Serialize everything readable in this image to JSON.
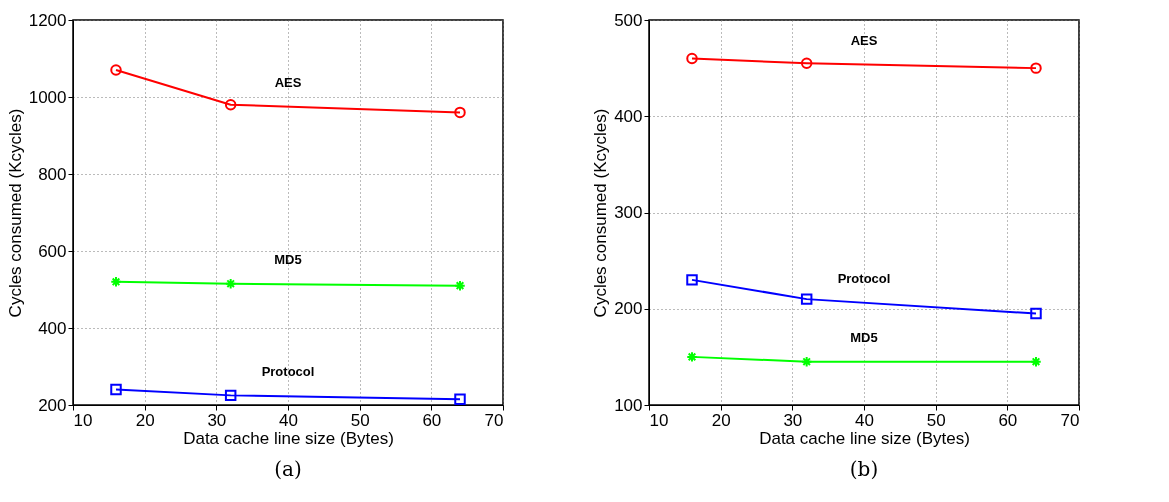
{
  "chart_data": [
    {
      "type": "line",
      "xlabel": "Data cache line size (Bytes)",
      "ylabel": "Cycles consumed (Kcycles)",
      "x": [
        16,
        32,
        64
      ],
      "xlim": [
        10,
        70
      ],
      "xticks": [
        10,
        20,
        30,
        40,
        50,
        60,
        70
      ],
      "ylim": [
        200,
        1200
      ],
      "yticks": [
        200,
        400,
        600,
        800,
        1000,
        1200
      ],
      "grid": true,
      "line_style": "solid",
      "annotations": [
        "(a)"
      ],
      "series": [
        {
          "name": "AES",
          "color": "#ff0000",
          "marker": "circle",
          "values": [
            1070,
            980,
            960
          ]
        },
        {
          "name": "MD5",
          "color": "#00ff00",
          "marker": "cross",
          "values": [
            520,
            515,
            510
          ]
        },
        {
          "name": "Protocol",
          "color": "#0000ff",
          "marker": "square",
          "values": [
            240,
            225,
            215
          ]
        }
      ]
    },
    {
      "type": "line",
      "xlabel": "Data cache line size (Bytes)",
      "ylabel": "Cycles consumed (Kcycles)",
      "x": [
        16,
        32,
        64
      ],
      "xlim": [
        10,
        70
      ],
      "xticks": [
        10,
        20,
        30,
        40,
        50,
        60,
        70
      ],
      "ylim": [
        100,
        500
      ],
      "yticks": [
        100,
        200,
        300,
        400,
        500
      ],
      "grid": true,
      "line_style": "solid",
      "annotations": [
        "(b)"
      ],
      "series": [
        {
          "name": "AES",
          "color": "#ff0000",
          "marker": "circle",
          "values": [
            460,
            455,
            450
          ]
        },
        {
          "name": "Protocol",
          "color": "#0000ff",
          "marker": "square",
          "values": [
            230,
            210,
            195
          ]
        },
        {
          "name": "MD5",
          "color": "#00ff00",
          "marker": "cross",
          "values": [
            150,
            145,
            145
          ]
        }
      ]
    }
  ]
}
